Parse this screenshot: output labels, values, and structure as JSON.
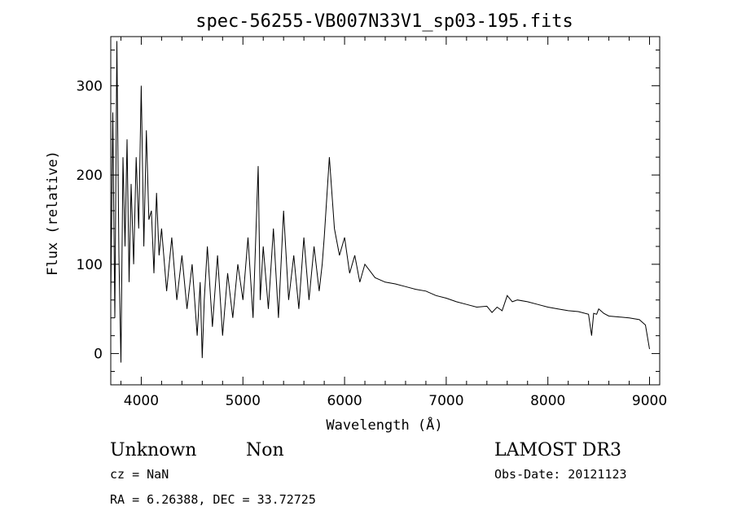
{
  "chart_data": {
    "type": "line",
    "title": "spec-56255-VB007N33V1_sp03-195.fits",
    "xlabel": "Wavelength (Å)",
    "ylabel": "Flux (relative)",
    "xlim": [
      3700,
      9100
    ],
    "ylim": [
      -35,
      355
    ],
    "xticks": [
      4000,
      5000,
      6000,
      7000,
      8000,
      9000
    ],
    "yticks": [
      0,
      100,
      200,
      300
    ],
    "grid": false,
    "series": [
      {
        "x": [
          3700,
          3720,
          3740,
          3760,
          3780,
          3800,
          3820,
          3840,
          3860,
          3880,
          3900,
          3925,
          3950,
          3975,
          4000,
          4025,
          4050,
          4075,
          4100,
          4125,
          4150,
          4175,
          4200,
          4250,
          4300,
          4350,
          4400,
          4450,
          4500,
          4550,
          4580,
          4600,
          4620,
          4650,
          4700,
          4750,
          4800,
          4850,
          4900,
          4950,
          5000,
          5050,
          5100,
          5150,
          5170,
          5200,
          5250,
          5300,
          5350,
          5400,
          5450,
          5500,
          5550,
          5600,
          5650,
          5700,
          5750,
          5780,
          5800,
          5850,
          5900,
          5950,
          6000,
          6050,
          6100,
          6150,
          6200,
          6300,
          6400,
          6500,
          6600,
          6700,
          6800,
          6900,
          7000,
          7100,
          7200,
          7300,
          7400,
          7450,
          7500,
          7550,
          7600,
          7650,
          7700,
          7800,
          7900,
          8000,
          8100,
          8200,
          8300,
          8400,
          8430,
          8450,
          8480,
          8500,
          8550,
          8600,
          8700,
          8800,
          8900,
          8960,
          9000
        ],
        "y": [
          60,
          270,
          40,
          350,
          110,
          -10,
          220,
          120,
          240,
          80,
          190,
          100,
          220,
          140,
          300,
          120,
          250,
          150,
          160,
          90,
          180,
          110,
          140,
          70,
          130,
          60,
          110,
          50,
          100,
          20,
          80,
          -5,
          60,
          120,
          30,
          110,
          20,
          90,
          40,
          100,
          60,
          130,
          40,
          210,
          60,
          120,
          50,
          140,
          40,
          160,
          60,
          110,
          50,
          130,
          60,
          120,
          70,
          100,
          130,
          220,
          140,
          110,
          130,
          90,
          110,
          80,
          100,
          85,
          80,
          78,
          75,
          72,
          70,
          65,
          62,
          58,
          55,
          52,
          53,
          46,
          52,
          48,
          65,
          58,
          60,
          58,
          55,
          52,
          50,
          48,
          47,
          44,
          20,
          45,
          44,
          50,
          45,
          42,
          41,
          40,
          38,
          32,
          5
        ]
      }
    ]
  },
  "info": {
    "class_label": "Unknown",
    "subclass_label": "Non",
    "survey": "LAMOST DR3",
    "cz": "cz = NaN",
    "obs_date": "Obs-Date: 20121123",
    "coords": "RA =   6.26388, DEC =  33.72725"
  }
}
